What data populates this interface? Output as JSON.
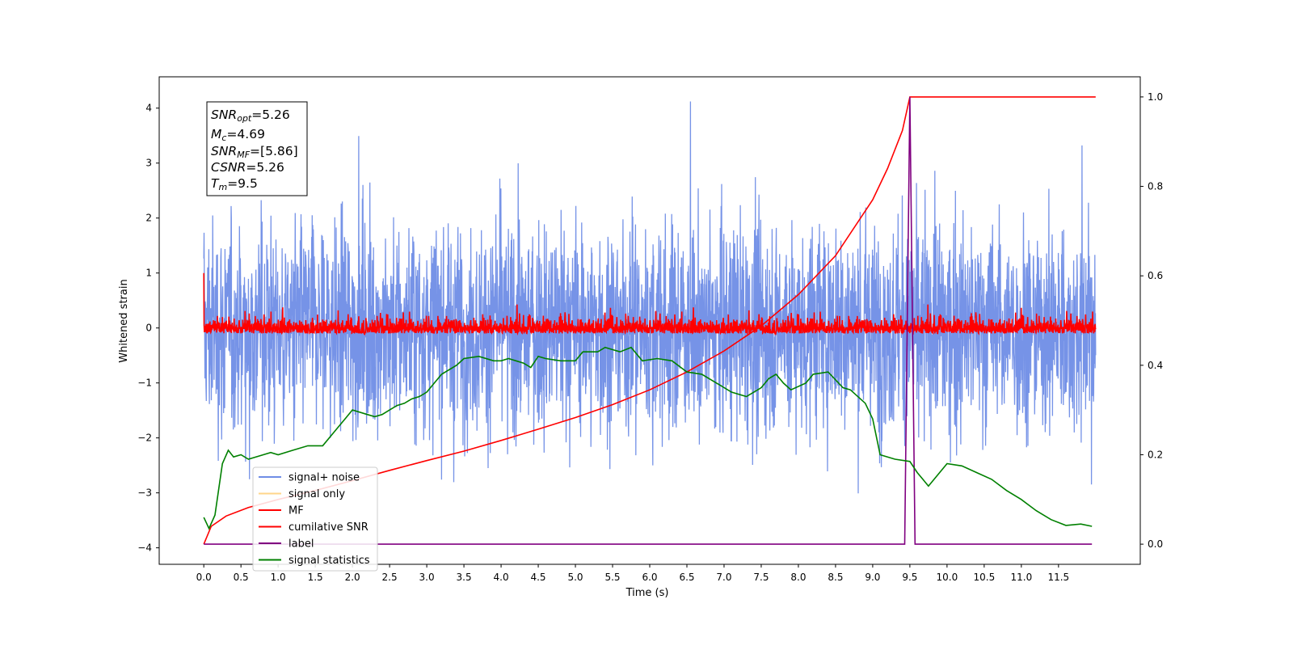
{
  "chart_data": {
    "type": "line",
    "xlabel": "Time (s)",
    "ylabel": "Whitened strain",
    "xlim": [
      -0.6,
      12.6
    ],
    "ylim": [
      -4.3,
      4.57
    ],
    "y2lim": [
      -0.045,
      1.045
    ],
    "x_ticks": [
      "0.0",
      "0.5",
      "1.0",
      "1.5",
      "2.0",
      "2.5",
      "3.0",
      "3.5",
      "4.0",
      "4.5",
      "5.0",
      "5.5",
      "6.0",
      "6.5",
      "7.0",
      "7.5",
      "8.0",
      "8.5",
      "9.0",
      "9.5",
      "10.0",
      "10.5",
      "11.0",
      "11.5"
    ],
    "y_ticks": [
      "−4",
      "−3",
      "−2",
      "−1",
      "0",
      "1",
      "2",
      "3",
      "4"
    ],
    "y2_ticks": [
      "0.0",
      "0.2",
      "0.4",
      "0.6",
      "0.8",
      "1.0"
    ],
    "grid": false,
    "legend_position": "lower-left",
    "legend": [
      {
        "label": "signal+ noise",
        "color": "#6f8de6"
      },
      {
        "label": "signal only",
        "color": "#ffd58a"
      },
      {
        "label": "MF",
        "color": "#ff0000"
      },
      {
        "label": "cumilative SNR",
        "color": "#ff0000"
      },
      {
        "label": "label",
        "color": "#800080"
      },
      {
        "label": "signal statistics",
        "color": "#008000"
      }
    ],
    "annotation": {
      "snr_opt": {
        "name": "SNR",
        "sub": "opt",
        "value": "=5.26"
      },
      "mc": {
        "name": "M",
        "sub": "c",
        "value": "=4.69"
      },
      "snr_mf": {
        "name": "SNR",
        "sub": "MF",
        "value": "=[5.86]"
      },
      "csnr": {
        "name": "CSNR",
        "sub": "",
        "value": "=5.26"
      },
      "tm": {
        "name": "T",
        "sub": "m",
        "value": "=9.5"
      }
    },
    "series": [
      {
        "name": "signal+ noise",
        "axis": "left",
        "color": "#6f8de6",
        "x_range": [
          0.0,
          12.0
        ],
        "approx_envelope": [
          -2.4,
          2.6
        ],
        "approx_max": 4.17,
        "approx_min": -3.9
      },
      {
        "name": "MF",
        "axis": "left",
        "color": "#ff0000",
        "x_range": [
          0.0,
          12.0
        ],
        "approx_envelope": [
          -0.25,
          0.45
        ],
        "start_value": 1.0
      },
      {
        "name": "cumilative SNR",
        "axis": "right",
        "color": "#ff0000",
        "x": [
          0.0,
          0.1,
          0.3,
          0.6,
          1.0,
          1.5,
          2.0,
          2.5,
          3.0,
          3.5,
          4.0,
          4.5,
          5.0,
          5.5,
          6.0,
          6.5,
          7.0,
          7.5,
          8.0,
          8.5,
          9.0,
          9.2,
          9.4,
          9.5,
          12.0
        ],
        "values": [
          0.0,
          0.04,
          0.063,
          0.082,
          0.1,
          0.12,
          0.142,
          0.165,
          0.187,
          0.208,
          0.232,
          0.257,
          0.283,
          0.312,
          0.345,
          0.385,
          0.432,
          0.488,
          0.558,
          0.645,
          0.77,
          0.84,
          0.925,
          1.0,
          1.0
        ]
      },
      {
        "name": "label",
        "axis": "right",
        "color": "#800080",
        "x": [
          0.0,
          9.43,
          9.5,
          9.57,
          11.95
        ],
        "values": [
          0.0,
          0.0,
          1.0,
          0.0,
          0.0
        ]
      },
      {
        "name": "signal statistics",
        "axis": "right",
        "color": "#008000",
        "x": [
          0.0,
          0.07,
          0.15,
          0.25,
          0.33,
          0.4,
          0.5,
          0.6,
          0.8,
          0.9,
          1.0,
          1.2,
          1.4,
          1.6,
          1.8,
          1.9,
          2.0,
          2.2,
          2.3,
          2.4,
          2.5,
          2.6,
          2.7,
          2.8,
          2.9,
          3.0,
          3.2,
          3.4,
          3.5,
          3.7,
          3.9,
          4.0,
          4.1,
          4.3,
          4.4,
          4.5,
          4.6,
          4.8,
          5.0,
          5.1,
          5.3,
          5.4,
          5.6,
          5.75,
          5.9,
          6.1,
          6.3,
          6.5,
          6.7,
          6.9,
          7.1,
          7.3,
          7.5,
          7.6,
          7.7,
          7.8,
          7.9,
          8.1,
          8.2,
          8.4,
          8.6,
          8.7,
          8.9,
          9.0,
          9.1,
          9.3,
          9.5,
          9.6,
          9.75,
          10.0,
          10.2,
          10.4,
          10.6,
          10.8,
          11.0,
          11.2,
          11.4,
          11.6,
          11.8,
          11.95
        ],
        "values": [
          0.06,
          0.035,
          0.065,
          0.18,
          0.21,
          0.195,
          0.2,
          0.19,
          0.2,
          0.205,
          0.2,
          0.21,
          0.22,
          0.22,
          0.26,
          0.28,
          0.3,
          0.29,
          0.285,
          0.29,
          0.3,
          0.31,
          0.315,
          0.325,
          0.33,
          0.34,
          0.38,
          0.4,
          0.415,
          0.42,
          0.41,
          0.41,
          0.415,
          0.405,
          0.395,
          0.42,
          0.415,
          0.41,
          0.41,
          0.43,
          0.43,
          0.44,
          0.43,
          0.44,
          0.41,
          0.415,
          0.41,
          0.385,
          0.38,
          0.36,
          0.34,
          0.33,
          0.35,
          0.37,
          0.38,
          0.36,
          0.345,
          0.36,
          0.38,
          0.385,
          0.35,
          0.345,
          0.315,
          0.28,
          0.2,
          0.19,
          0.185,
          0.16,
          0.13,
          0.18,
          0.175,
          0.16,
          0.145,
          0.12,
          0.1,
          0.075,
          0.055,
          0.042,
          0.045,
          0.04
        ]
      }
    ]
  }
}
